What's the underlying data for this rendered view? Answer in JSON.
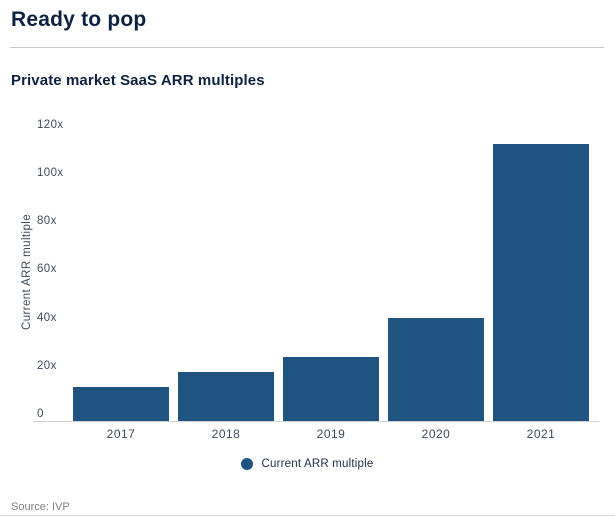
{
  "header": {
    "title": "Ready to pop"
  },
  "chart_data": {
    "type": "bar",
    "title": "Ready to pop",
    "subtitle": "Private market SaaS ARR multiples",
    "categories": [
      "2017",
      "2018",
      "2019",
      "2020",
      "2021"
    ],
    "values": [
      14,
      20,
      26,
      42,
      113
    ],
    "series_name": "Current ARR multiple",
    "xlabel": "",
    "ylabel": "Current ARR multiple",
    "ylim": [
      0,
      120
    ],
    "ytick_step": 20,
    "ytick_labels": [
      "0",
      "20x",
      "40x",
      "60x",
      "80x",
      "100x",
      "120x"
    ],
    "grid": false,
    "legend": {
      "label": "Current ARR multiple",
      "position": "bottom-center"
    },
    "bar_color": "#1F5480"
  },
  "footer": {
    "source": "Source: IVP"
  },
  "colors": {
    "bar": "#1F5480",
    "heading_text": "#0d2240",
    "axis_text": "#3d4a5c",
    "axis_line": "#d0d0d0",
    "divider": "#c9c9c9",
    "source_text": "#808080"
  }
}
